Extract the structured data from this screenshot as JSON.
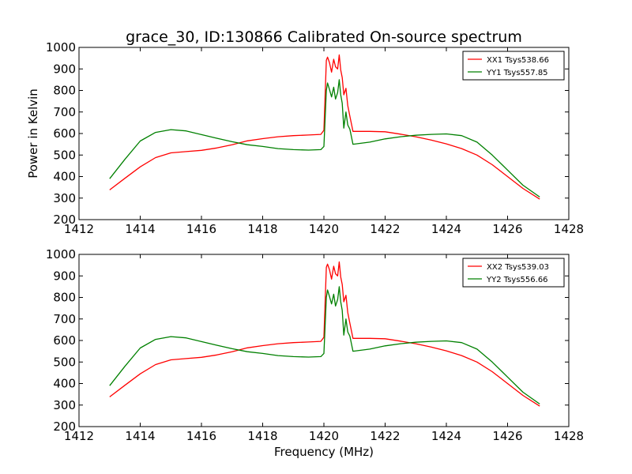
{
  "figure": {
    "title": "grace_30, ID:130866 Calibrated On-source spectrum",
    "xlabel": "Frequency (MHz)",
    "ylabel": "Power in Kelvin"
  },
  "chart_data": [
    {
      "type": "line",
      "title": "grace_30, ID:130866 Calibrated On-source spectrum",
      "xlabel": "",
      "ylabel": "Power in Kelvin",
      "xlim": [
        1412,
        1428
      ],
      "ylim": [
        200,
        1000
      ],
      "xticks": [
        1412,
        1414,
        1416,
        1418,
        1420,
        1422,
        1424,
        1426,
        1428
      ],
      "yticks": [
        200,
        300,
        400,
        500,
        600,
        700,
        800,
        900,
        1000
      ],
      "grid": false,
      "legend_position": "top-right",
      "series": [
        {
          "name": "XX1 Tsys538.66",
          "color": "#ff0000",
          "x": [
            1413.0,
            1413.5,
            1414.0,
            1414.5,
            1415.0,
            1415.5,
            1416.0,
            1416.5,
            1417.0,
            1417.5,
            1418.0,
            1418.5,
            1419.0,
            1419.5,
            1419.9,
            1420.0,
            1420.08,
            1420.12,
            1420.18,
            1420.25,
            1420.32,
            1420.38,
            1420.45,
            1420.5,
            1420.55,
            1420.6,
            1420.65,
            1420.72,
            1420.78,
            1420.85,
            1420.95,
            1421.5,
            1422.0,
            1422.5,
            1423.0,
            1423.5,
            1424.0,
            1424.5,
            1425.0,
            1425.5,
            1426.0,
            1426.5,
            1427.05
          ],
          "y": [
            338,
            392,
            445,
            488,
            510,
            516,
            522,
            533,
            548,
            566,
            576,
            585,
            590,
            593,
            596,
            615,
            940,
            955,
            930,
            885,
            945,
            910,
            900,
            965,
            895,
            860,
            780,
            810,
            730,
            680,
            610,
            610,
            608,
            597,
            585,
            570,
            552,
            530,
            500,
            455,
            400,
            345,
            295
          ]
        },
        {
          "name": "YY1 Tsys557.85",
          "color": "#008000",
          "x": [
            1413.0,
            1413.5,
            1414.0,
            1414.5,
            1415.0,
            1415.5,
            1416.0,
            1416.5,
            1417.0,
            1417.5,
            1418.0,
            1418.5,
            1419.0,
            1419.5,
            1419.9,
            1420.0,
            1420.08,
            1420.12,
            1420.18,
            1420.25,
            1420.32,
            1420.38,
            1420.45,
            1420.5,
            1420.55,
            1420.6,
            1420.65,
            1420.72,
            1420.78,
            1420.85,
            1420.95,
            1421.5,
            1422.0,
            1422.5,
            1423.0,
            1423.5,
            1424.0,
            1424.5,
            1425.0,
            1425.5,
            1426.0,
            1426.5,
            1427.05
          ],
          "y": [
            390,
            480,
            565,
            605,
            618,
            612,
            595,
            578,
            562,
            548,
            540,
            530,
            525,
            523,
            525,
            540,
            800,
            835,
            805,
            770,
            815,
            760,
            790,
            850,
            780,
            740,
            625,
            700,
            640,
            620,
            550,
            560,
            575,
            585,
            592,
            596,
            598,
            590,
            560,
            500,
            430,
            360,
            305
          ]
        }
      ]
    },
    {
      "type": "line",
      "title": "",
      "xlabel": "Frequency (MHz)",
      "ylabel": "",
      "xlim": [
        1412,
        1428
      ],
      "ylim": [
        200,
        1000
      ],
      "xticks": [
        1412,
        1414,
        1416,
        1418,
        1420,
        1422,
        1424,
        1426,
        1428
      ],
      "yticks": [
        200,
        300,
        400,
        500,
        600,
        700,
        800,
        900,
        1000
      ],
      "grid": false,
      "legend_position": "top-right",
      "series": [
        {
          "name": "XX2 Tsys539.03",
          "color": "#ff0000",
          "x": [
            1413.0,
            1413.5,
            1414.0,
            1414.5,
            1415.0,
            1415.5,
            1416.0,
            1416.5,
            1417.0,
            1417.5,
            1418.0,
            1418.5,
            1419.0,
            1419.5,
            1419.9,
            1420.0,
            1420.08,
            1420.12,
            1420.18,
            1420.25,
            1420.32,
            1420.38,
            1420.45,
            1420.5,
            1420.55,
            1420.6,
            1420.65,
            1420.72,
            1420.78,
            1420.85,
            1420.95,
            1421.5,
            1422.0,
            1422.5,
            1423.0,
            1423.5,
            1424.0,
            1424.5,
            1425.0,
            1425.5,
            1426.0,
            1426.5,
            1427.05
          ],
          "y": [
            338,
            392,
            445,
            488,
            510,
            516,
            522,
            533,
            548,
            566,
            576,
            585,
            590,
            593,
            596,
            615,
            940,
            955,
            930,
            885,
            945,
            910,
            900,
            965,
            895,
            860,
            780,
            810,
            730,
            680,
            610,
            610,
            608,
            597,
            585,
            570,
            552,
            530,
            500,
            455,
            400,
            345,
            295
          ]
        },
        {
          "name": "YY2 Tsys556.66",
          "color": "#008000",
          "x": [
            1413.0,
            1413.5,
            1414.0,
            1414.5,
            1415.0,
            1415.5,
            1416.0,
            1416.5,
            1417.0,
            1417.5,
            1418.0,
            1418.5,
            1419.0,
            1419.5,
            1419.9,
            1420.0,
            1420.08,
            1420.12,
            1420.18,
            1420.25,
            1420.32,
            1420.38,
            1420.45,
            1420.5,
            1420.55,
            1420.6,
            1420.65,
            1420.72,
            1420.78,
            1420.85,
            1420.95,
            1421.5,
            1422.0,
            1422.5,
            1423.0,
            1423.5,
            1424.0,
            1424.5,
            1425.0,
            1425.5,
            1426.0,
            1426.5,
            1427.05
          ],
          "y": [
            390,
            480,
            565,
            605,
            618,
            612,
            595,
            578,
            562,
            548,
            540,
            530,
            525,
            523,
            525,
            540,
            800,
            835,
            805,
            770,
            815,
            760,
            790,
            850,
            780,
            740,
            625,
            700,
            640,
            620,
            550,
            560,
            575,
            585,
            592,
            596,
            598,
            590,
            560,
            500,
            430,
            360,
            305
          ]
        }
      ]
    }
  ]
}
